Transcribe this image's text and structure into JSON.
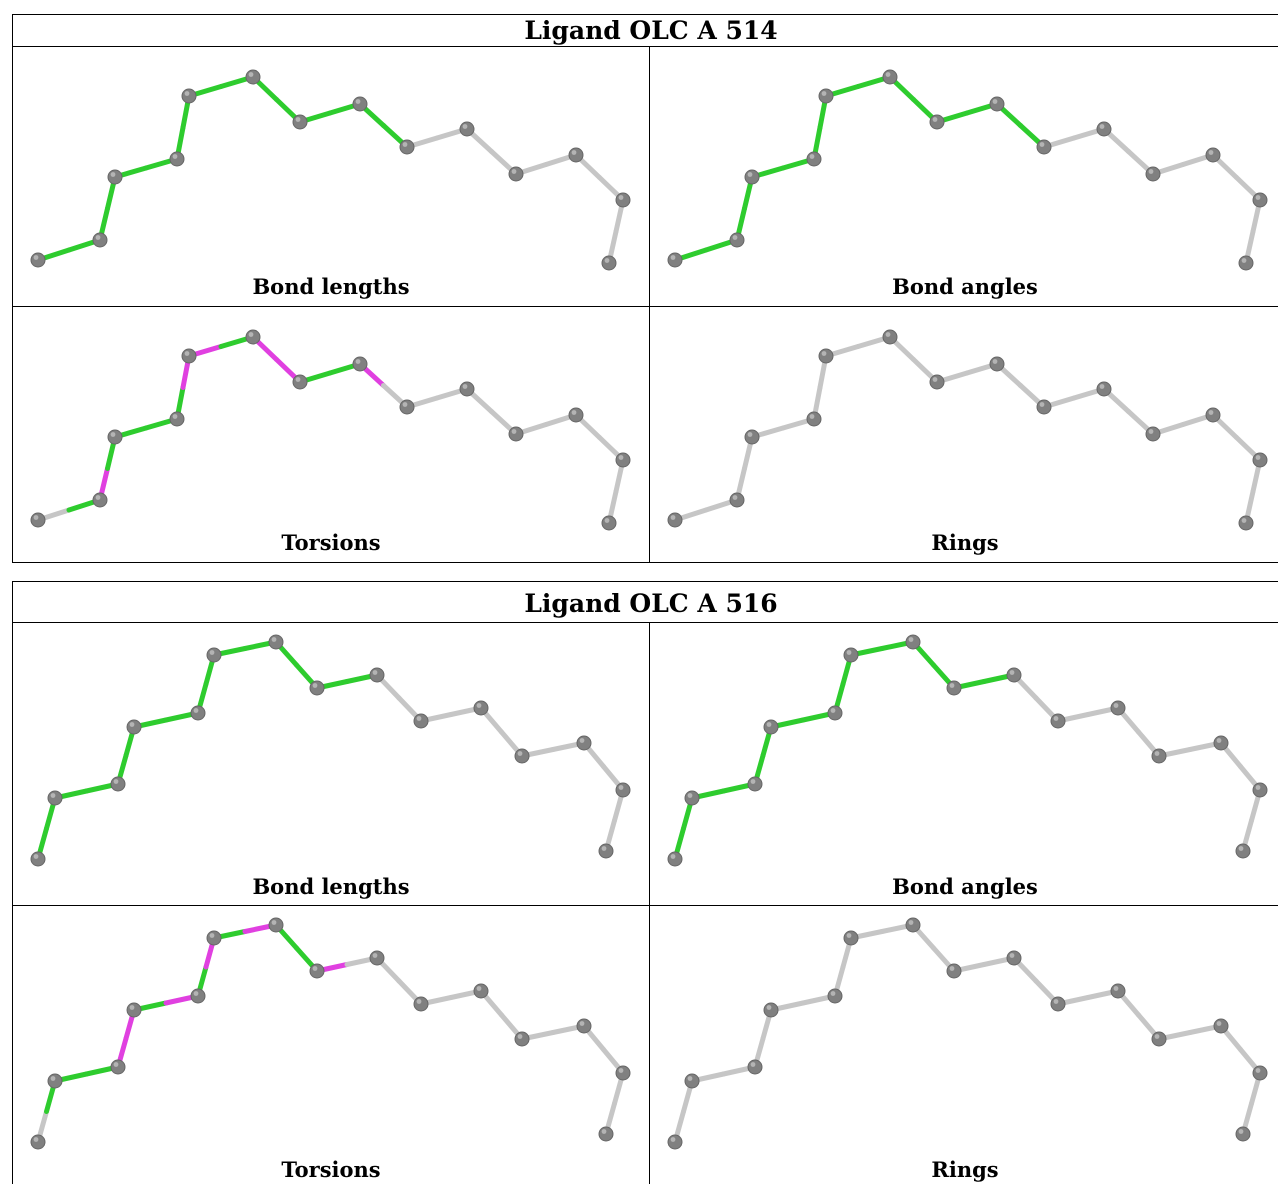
{
  "colors": {
    "ok": "#2ecc2e",
    "outlier": "#e040e0",
    "neutral": "#c6c6c6",
    "atom": "#808080"
  },
  "ligands": [
    {
      "title": "Ligand OLC A 514",
      "panels": [
        {
          "caption": "Bond lengths",
          "bonds": [
            "ok",
            "ok",
            "ok",
            "ok",
            "ok",
            "ok",
            "ok",
            "ok",
            "ok",
            "ok",
            "ok",
            "ok",
            "ok",
            "ok",
            "ok",
            "ok"
          ]
        },
        {
          "caption": "Bond angles",
          "bonds": [
            "ok",
            "ok",
            "ok",
            "ok",
            "ok",
            "ok",
            "ok",
            "ok",
            "ok",
            "ok",
            "ok",
            "ok",
            "ok",
            "ok",
            "ok",
            "ok"
          ]
        },
        {
          "caption": "Torsions",
          "bonds": [
            "neutral",
            "ok",
            "outlier",
            "ok",
            "ok",
            "ok",
            "ok",
            "outlier",
            "outlier",
            "ok",
            "outlier",
            "outlier",
            "ok",
            "ok",
            "outlier",
            "neutral"
          ]
        },
        {
          "caption": "Rings",
          "bonds": [
            "neutral",
            "neutral",
            "neutral",
            "neutral",
            "neutral",
            "neutral",
            "neutral",
            "neutral",
            "neutral",
            "neutral",
            "neutral",
            "neutral",
            "neutral",
            "neutral",
            "neutral",
            "neutral"
          ]
        }
      ]
    },
    {
      "title": "Ligand OLC A 516",
      "panels": [
        {
          "caption": "Bond lengths",
          "bonds": [
            "ok",
            "ok",
            "ok",
            "ok",
            "ok",
            "ok",
            "ok",
            "ok",
            "ok",
            "ok",
            "ok",
            "ok",
            "ok",
            "ok",
            "ok",
            "ok"
          ]
        },
        {
          "caption": "Bond angles",
          "bonds": [
            "ok",
            "ok",
            "ok",
            "ok",
            "ok",
            "ok",
            "ok",
            "ok",
            "ok",
            "ok",
            "ok",
            "ok",
            "ok",
            "ok",
            "ok",
            "ok"
          ]
        },
        {
          "caption": "Torsions",
          "bonds": [
            "neutral",
            "ok",
            "ok",
            "ok",
            "outlier",
            "outlier",
            "ok",
            "outlier",
            "ok",
            "outlier",
            "ok",
            "outlier",
            "ok",
            "ok",
            "outlier",
            "neutral"
          ]
        },
        {
          "caption": "Rings",
          "bonds": [
            "neutral",
            "neutral",
            "neutral",
            "neutral",
            "neutral",
            "neutral",
            "neutral",
            "neutral",
            "neutral",
            "neutral",
            "neutral",
            "neutral",
            "neutral",
            "neutral",
            "neutral",
            "neutral"
          ]
        }
      ]
    }
  ]
}
